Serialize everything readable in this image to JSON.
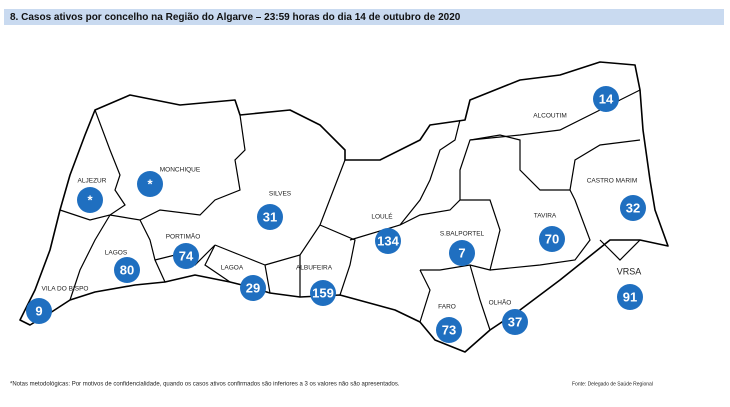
{
  "header": {
    "title": "8.   Casos ativos por concelho na Região do Algarve – 23:59 horas do dia 14 de outubro de 2020"
  },
  "municipalities": [
    {
      "name": "ALJEZUR",
      "value": "*"
    },
    {
      "name": "MONCHIQUE",
      "value": "*"
    },
    {
      "name": "SILVES",
      "value": "31"
    },
    {
      "name": "LOULÉ",
      "value": "134"
    },
    {
      "name": "S.BALPORTEL",
      "value": "7"
    },
    {
      "name": "TAVIRA",
      "value": "70"
    },
    {
      "name": "ALCOUTIM",
      "value": "14"
    },
    {
      "name": "CASTRO MARIM",
      "value": "32"
    },
    {
      "name": "VRSA",
      "value": "91"
    },
    {
      "name": "OLHÃO",
      "value": "37"
    },
    {
      "name": "FARO",
      "value": "73"
    },
    {
      "name": "ALBUFEIRA",
      "value": "159"
    },
    {
      "name": "LAGOA",
      "value": "29"
    },
    {
      "name": "PORTIMÃO",
      "value": "74"
    },
    {
      "name": "LAGOS",
      "value": "80"
    },
    {
      "name": "VILA DO BISPO",
      "value": "9"
    }
  ],
  "footer": {
    "note": "*Notas metodológicas: Por motivos de confidencialidade, quando os casos ativos confirmados são inferiores a 3 os valores não são apresentados.",
    "source": "Fonte: Delegado de Saúde Regional"
  }
}
